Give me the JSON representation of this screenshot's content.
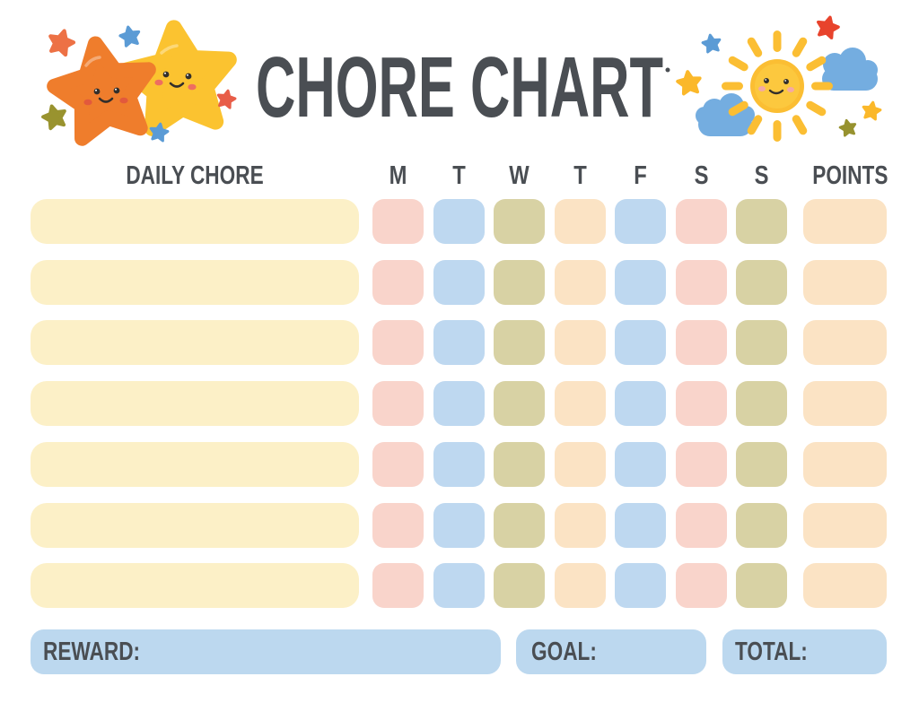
{
  "title": "CHORE CHART",
  "table": {
    "chore_header": "DAILY CHORE",
    "day_headers": [
      "M",
      "T",
      "W",
      "T",
      "F",
      "S",
      "S"
    ],
    "points_header": "POINTS",
    "row_count": 7,
    "chore_cell_color": "#FCF0C7",
    "points_cell_color": "#FBE3C4",
    "day_cell_colors": [
      "#F9D4CB",
      "#BED8F0",
      "#D8D2A4",
      "#FBE3C4",
      "#BED8F0",
      "#F9D4CB",
      "#D8D2A4"
    ]
  },
  "footer": {
    "reward_label": "REWARD:",
    "goal_label": "GOAL:",
    "total_label": "TOTAL:",
    "box_color": "#BCD8EF"
  },
  "theme": {
    "text_color": "#4A4E53",
    "background": "#FFFFFF"
  },
  "illustrations": {
    "left": {
      "icon": "two-smiling-stars-icon",
      "colors": {
        "orange_star": "#EF7D2C",
        "yellow_star": "#FBC330",
        "accent_orange_red": "#ED7145",
        "accent_blue": "#5B9BD5",
        "accent_olive": "#99932F",
        "accent_red": "#E85D48",
        "orange_star_cheek": "#E2593C",
        "yellow_star_cheek": "#EE6E60"
      }
    },
    "right": {
      "icon": "smiling-sun-with-clouds-icon",
      "colors": {
        "sun": "#FBBE33",
        "sun_inner": "#FCC83E",
        "cloud": "#74ADE0",
        "accent_blue": "#5B9BD5",
        "accent_red": "#E8432C",
        "accent_yellow": "#FBB82A",
        "accent_olive": "#97922F",
        "sun_cheek": "#F4A9A5"
      }
    }
  }
}
